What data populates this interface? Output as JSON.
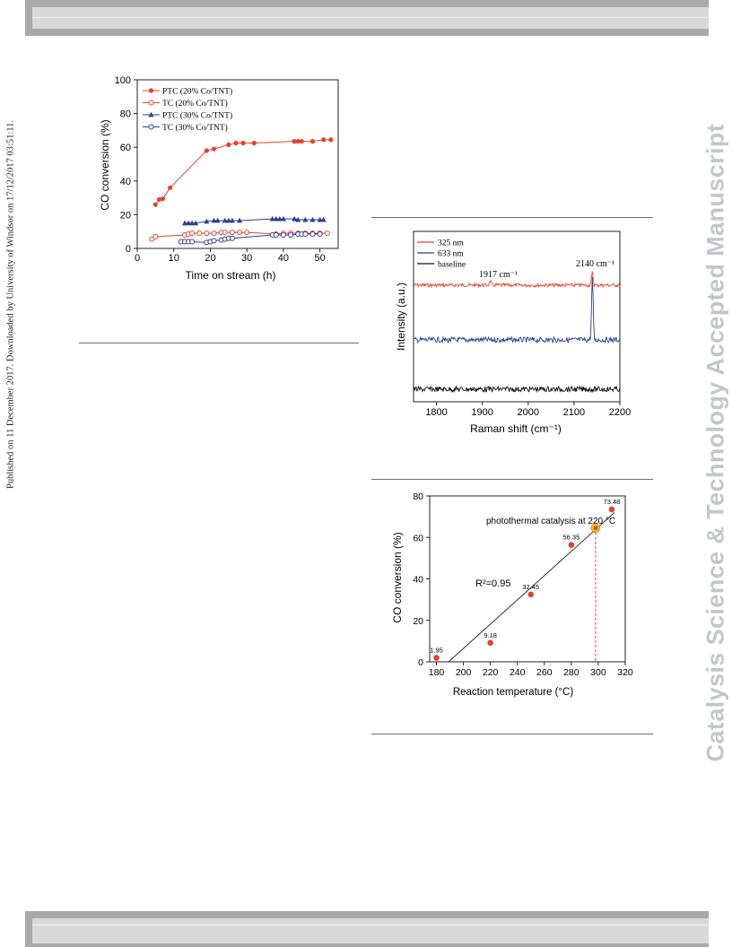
{
  "page": {
    "side_note": "Published on 11 December 2017. Downloaded by University of Windsor on 17/12/2017 03:51:11.",
    "watermark": "Catalysis Science & Technology Accepted Manuscript"
  },
  "chart_data": [
    {
      "type": "line",
      "xlabel": "Time on stream (h)",
      "ylabel": "CO conversion (%)",
      "xlim": [
        0,
        55
      ],
      "ylim": [
        0,
        100
      ],
      "xticks": [
        0,
        10,
        20,
        30,
        40,
        50
      ],
      "yticks": [
        0,
        20,
        40,
        60,
        80,
        100
      ],
      "legend_position": "top-left",
      "series": [
        {
          "name": "PTC (20% Co/TNT)",
          "color": "#e0452c",
          "marker": "filled-circle",
          "x": [
            5,
            6,
            7,
            9,
            19,
            21,
            25,
            27,
            29,
            32,
            43,
            44,
            45,
            48,
            51,
            53
          ],
          "y": [
            26,
            29,
            29.5,
            36,
            58,
            59,
            61.5,
            62.5,
            62.5,
            62.5,
            63.5,
            63.5,
            63.5,
            63.5,
            64.5,
            64.5
          ]
        },
        {
          "name": "TC   (20% Co/TNT)",
          "color": "#e0452c",
          "marker": "open-circle",
          "x": [
            4,
            5,
            13,
            14,
            15,
            17,
            19,
            21,
            23,
            24,
            26,
            28,
            30,
            38,
            40,
            42,
            44,
            46,
            48,
            50,
            52
          ],
          "y": [
            5.5,
            7,
            8,
            8.5,
            9,
            9,
            9,
            9,
            9.5,
            9.5,
            9.5,
            9.5,
            9.5,
            8.5,
            9,
            9,
            9,
            9,
            9,
            9,
            9
          ]
        },
        {
          "name": "PTC (30% Co/TNT)",
          "color": "#2e3e8f",
          "marker": "filled-triangle",
          "x": [
            13,
            14,
            15,
            16,
            19,
            21,
            22,
            24,
            25,
            26,
            28,
            37,
            38,
            39,
            40,
            43,
            44,
            46,
            48,
            50,
            51
          ],
          "y": [
            15,
            15,
            15,
            15,
            16,
            16.5,
            16.5,
            16.5,
            16.5,
            16.5,
            16.5,
            17.5,
            17.5,
            17.5,
            17.5,
            17.5,
            17,
            17,
            17,
            17,
            17
          ]
        },
        {
          "name": "TC   (30% Co/TNT)",
          "color": "#2e3e8f",
          "marker": "open-circle",
          "x": [
            12,
            13,
            14,
            15,
            19,
            20,
            21,
            23,
            24,
            25,
            26,
            37,
            38,
            40,
            42,
            44,
            45,
            46,
            48,
            50
          ],
          "y": [
            4,
            4,
            4,
            4,
            3.5,
            4,
            4.5,
            5,
            5.5,
            6,
            6,
            8,
            8,
            8,
            8,
            8.5,
            8.5,
            8.5,
            8.5,
            8.5
          ]
        }
      ]
    },
    {
      "type": "line",
      "xlabel": "Raman shift (cm⁻¹)",
      "ylabel": "Intensity (a.u.)",
      "xlim": [
        1750,
        2200
      ],
      "xticks": [
        1800,
        1900,
        2000,
        2100,
        2200
      ],
      "legend_position": "top-left",
      "annotations": [
        "1917 cm⁻¹",
        "2140 cm⁻¹"
      ],
      "series": [
        {
          "name": "325 nm",
          "color": "#e0452c",
          "peaks": [
            {
              "x": 1917,
              "height": 0.35
            },
            {
              "x": 2140,
              "height": 1.0
            }
          ]
        },
        {
          "name": "633 nm",
          "color": "#2e3e8f",
          "peaks": [
            {
              "x": 2140,
              "height": 5.0
            }
          ]
        },
        {
          "name": "baseline",
          "color": "#111111",
          "peaks": []
        }
      ]
    },
    {
      "type": "scatter",
      "xlabel": "Reaction temperature (°C)",
      "ylabel": "CO conversion (%)",
      "xlim": [
        175,
        320
      ],
      "ylim": [
        0,
        80
      ],
      "xticks": [
        180,
        200,
        220,
        240,
        260,
        280,
        300,
        320
      ],
      "yticks": [
        0,
        20,
        40,
        60,
        80
      ],
      "points_color": "#e0452c",
      "x": [
        180,
        220,
        250,
        280,
        310
      ],
      "y": [
        1.95,
        9.18,
        32.45,
        56.35,
        73.48
      ],
      "point_labels": [
        "1.95",
        "9.18",
        "32.45",
        "56.35",
        "73.48"
      ],
      "fit": {
        "x": [
          189,
          312
        ],
        "y": [
          0,
          72
        ],
        "label": "R²=0.95"
      },
      "highlight": {
        "x": 298,
        "y": 64.5,
        "color": "#f2c02e",
        "label": "photothermal catalysis at  220 °C"
      }
    }
  ]
}
